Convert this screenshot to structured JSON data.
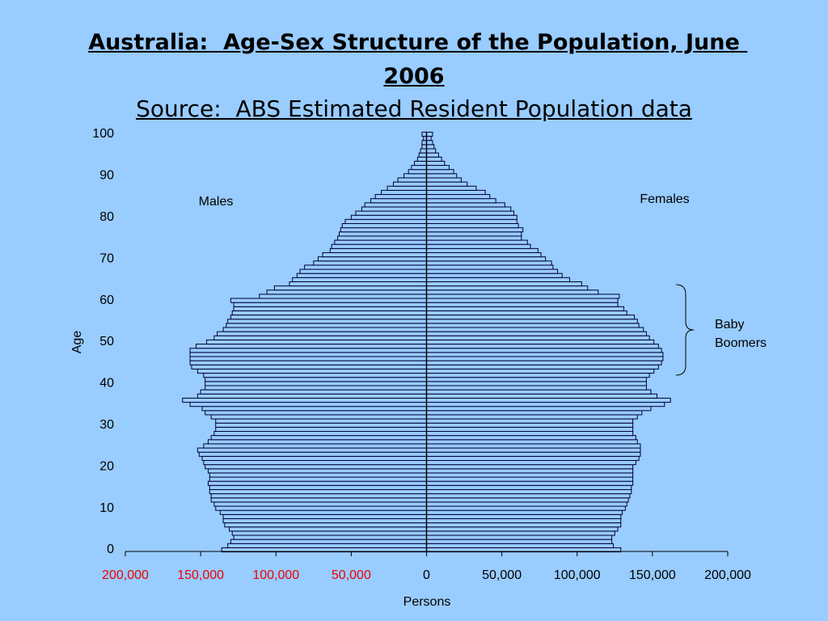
{
  "chart_data": {
    "type": "pyramid",
    "title": "Australia:  Age-Sex Structure of the Population, June 2006",
    "subtitle": "Source:  ABS Estimated Resident Population data",
    "ylabel": "Age",
    "xlabel": "Persons",
    "annotation": [
      "Baby",
      "Boomers"
    ],
    "y": [
      0,
      1,
      2,
      3,
      4,
      5,
      6,
      7,
      8,
      9,
      10,
      11,
      12,
      13,
      14,
      15,
      16,
      17,
      18,
      19,
      20,
      21,
      22,
      23,
      24,
      25,
      26,
      27,
      28,
      29,
      30,
      31,
      32,
      33,
      34,
      35,
      36,
      37,
      38,
      39,
      40,
      41,
      42,
      43,
      44,
      45,
      46,
      47,
      48,
      49,
      50,
      51,
      52,
      53,
      54,
      55,
      56,
      57,
      58,
      59,
      60,
      61,
      62,
      63,
      64,
      65,
      66,
      67,
      68,
      69,
      70,
      71,
      72,
      73,
      74,
      75,
      76,
      77,
      78,
      79,
      80,
      81,
      82,
      83,
      84,
      85,
      86,
      87,
      88,
      89,
      90,
      91,
      92,
      93,
      94,
      95,
      96,
      97,
      98,
      99,
      100
    ],
    "series": [
      {
        "name": "Males",
        "color": "#99ccff",
        "values": [
          -136000,
          -132000,
          -130000,
          -128000,
          -129000,
          -131000,
          -134000,
          -135000,
          -135000,
          -137000,
          -140000,
          -141000,
          -143000,
          -143000,
          -144000,
          -144000,
          -145000,
          -144000,
          -144000,
          -145000,
          -147000,
          -148000,
          -149000,
          -151000,
          -152000,
          -148000,
          -145000,
          -143000,
          -141000,
          -140000,
          -140000,
          -140000,
          -143000,
          -147000,
          -149000,
          -157000,
          -162000,
          -152000,
          -150000,
          -147000,
          -147000,
          -147000,
          -148000,
          -152000,
          -156000,
          -157000,
          -157000,
          -157000,
          -157000,
          -153000,
          -146000,
          -141000,
          -139000,
          -135000,
          -133000,
          -132000,
          -130000,
          -129000,
          -128000,
          -128000,
          -130000,
          -111000,
          -106000,
          -101000,
          -91000,
          -89000,
          -86000,
          -84000,
          -81000,
          -75000,
          -72000,
          -69000,
          -64000,
          -63000,
          -61000,
          -59000,
          -58000,
          -57000,
          -56000,
          -54000,
          -50000,
          -47000,
          -43000,
          -41000,
          -37000,
          -34000,
          -30000,
          -26000,
          -22000,
          -19000,
          -15000,
          -12000,
          -10000,
          -8000,
          -6000,
          -5000,
          -4000,
          -3000,
          -3000,
          -2000,
          -3000
        ]
      },
      {
        "name": "Females",
        "color": "#99ccff",
        "values": [
          129000,
          124000,
          123000,
          123000,
          125000,
          127000,
          129000,
          129000,
          129000,
          130000,
          132000,
          133000,
          134000,
          135000,
          136000,
          136000,
          137000,
          137000,
          137000,
          137000,
          137000,
          139000,
          141000,
          142000,
          142000,
          142000,
          140000,
          139000,
          137000,
          137000,
          137000,
          137000,
          140000,
          143000,
          149000,
          158000,
          162000,
          153000,
          149000,
          146000,
          146000,
          146000,
          148000,
          151000,
          154000,
          156000,
          157000,
          157000,
          156000,
          154000,
          151000,
          148000,
          146000,
          144000,
          141000,
          140000,
          138000,
          133000,
          131000,
          127000,
          127000,
          128000,
          114000,
          107000,
          103000,
          95000,
          90000,
          87000,
          84000,
          83000,
          79000,
          76000,
          74000,
          69000,
          67000,
          63000,
          63000,
          64000,
          61000,
          60000,
          60000,
          58000,
          56000,
          52000,
          46000,
          42000,
          39000,
          33000,
          27000,
          23000,
          20000,
          18000,
          15000,
          12000,
          10000,
          8000,
          6000,
          5000,
          4000,
          3000,
          4000
        ]
      }
    ],
    "bar_stroke": "#000033",
    "xlim": [
      -200000,
      200000
    ],
    "xticks": [
      {
        "value": -200000,
        "label": "200,000"
      },
      {
        "value": -150000,
        "label": "150,000"
      },
      {
        "value": -100000,
        "label": "100,000"
      },
      {
        "value": -50000,
        "label": "50,000"
      },
      0,
      {
        "value": 50000,
        "label": "50,000"
      },
      {
        "value": 100000,
        "label": "100,000"
      },
      {
        "value": 150000,
        "label": "150,000"
      },
      {
        "value": 200000,
        "label": "200,000"
      }
    ],
    "xtick_colors": [
      "#ee0000",
      "#ee0000",
      "#ee0000",
      "#ee0000",
      "#000000",
      "#000000",
      "#000000",
      "#000000",
      "#000000"
    ],
    "ylim": [
      0,
      100
    ],
    "yticks": [
      0,
      10,
      20,
      30,
      40,
      50,
      60,
      70,
      80,
      90,
      100
    ]
  }
}
